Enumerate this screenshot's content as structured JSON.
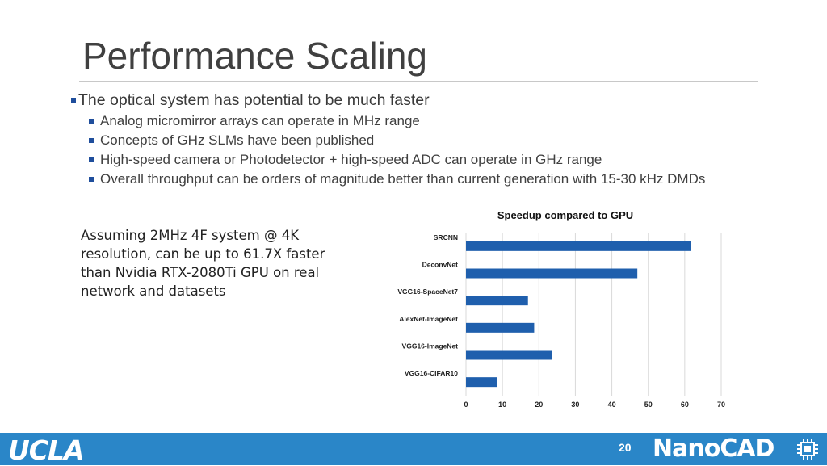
{
  "slide": {
    "title": "Performance Scaling",
    "bullets": [
      {
        "text": "The optical system has potential to be much faster",
        "sub": [
          "Analog micromirror arrays can operate in MHz range",
          "Concepts of GHz SLMs have been published",
          "High-speed camera or Photodetector + high-speed ADC can operate in GHz range",
          "Overall throughput can be orders of magnitude better than current generation with 15-30 kHz DMDs"
        ]
      }
    ],
    "note": "Assuming 2MHz 4F system @ 4K resolution, can be up to 61.7X faster than Nvidia RTX-2080Ti GPU on real network and datasets"
  },
  "footer": {
    "left_logo": "UCLA",
    "page_number": "20",
    "right_logo": "NanoCAD"
  },
  "colors": {
    "accent": "#1f5fad",
    "footer": "#2a86c8",
    "bullet": "#1f4e9c"
  },
  "chart_data": {
    "type": "bar",
    "orientation": "horizontal",
    "title": "Speedup compared to GPU",
    "categories": [
      "SRCNN",
      "DeconvNet",
      "VGG16-SpaceNet7",
      "AlexNet-ImageNet",
      "VGG16-ImageNet",
      "VGG16-CIFAR10"
    ],
    "values": [
      61.7,
      47,
      17,
      18.7,
      23.5,
      8.5
    ],
    "xlim": [
      0,
      70
    ],
    "xticks": [
      "0",
      "10",
      "20",
      "30",
      "40",
      "50",
      "60",
      "70"
    ],
    "xlabel": "",
    "ylabel": "",
    "grid": true
  }
}
